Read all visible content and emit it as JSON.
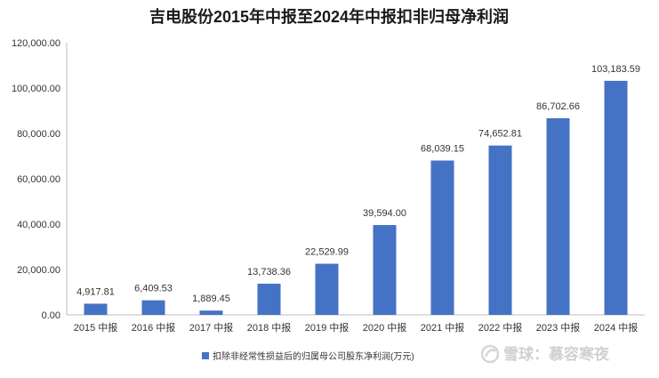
{
  "chart_data": {
    "type": "bar",
    "title": "吉电股份2015年中报至2024年中报扣非归母净利润",
    "categories": [
      "2015 中报",
      "2016 中报",
      "2017 中报",
      "2018 中报",
      "2019 中报",
      "2020 中报",
      "2021 中报",
      "2022 中报",
      "2023 中报",
      "2024 中报"
    ],
    "series": [
      {
        "name": "扣除非经常性损益后的归属母公司股东净利润(万元)",
        "values": [
          4917.81,
          6409.53,
          1889.45,
          13738.36,
          22529.99,
          39594.0,
          68039.15,
          74652.81,
          86702.66,
          103183.59
        ],
        "labels": [
          "4,917.81",
          "6,409.53",
          "1,889.45",
          "13,738.36",
          "22,529.99",
          "39,594.00",
          "68,039.15",
          "74,652.81",
          "86,702.66",
          "103,183.59"
        ],
        "color": "#4472c4"
      }
    ],
    "yticks": [
      0,
      20000,
      40000,
      60000,
      80000,
      100000,
      120000
    ],
    "ytick_labels": [
      "0.00",
      "20,000.00",
      "40,000.00",
      "60,000.00",
      "80,000.00",
      "100,000.00",
      "120,000.00"
    ],
    "ylim": [
      0,
      120000
    ],
    "grid": false,
    "legend_position": "bottom"
  },
  "watermark": {
    "text": "雪球：慕容寒夜"
  }
}
